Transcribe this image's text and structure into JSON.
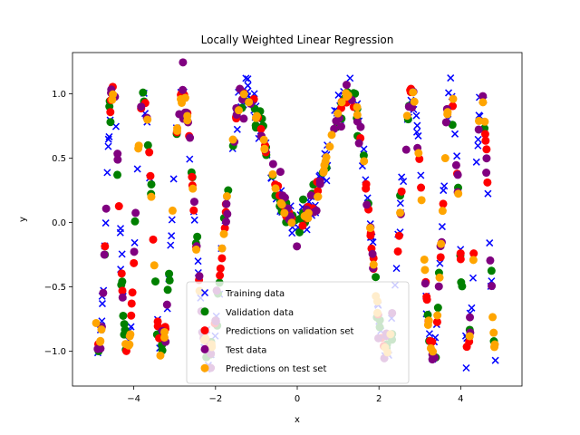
{
  "chart_data": {
    "type": "scatter",
    "title": "Locally Weighted Linear Regression",
    "xlabel": "x",
    "ylabel": "y",
    "xlim": [
      -5.5,
      5.5
    ],
    "ylim": [
      -1.27,
      1.32
    ],
    "xticks": [
      -4,
      -2,
      0,
      2,
      4
    ],
    "xtick_labels": [
      "−4",
      "−2",
      "0",
      "2",
      "4"
    ],
    "yticks": [
      -1.0,
      -0.5,
      0.0,
      0.5,
      1.0
    ],
    "ytick_labels": [
      "−1.0",
      "−0.5",
      "0.0",
      "0.5",
      "1.0"
    ],
    "legend_position": "lower-center",
    "grid": false,
    "underlying_function": "sin(x^2)",
    "series": [
      {
        "name": "Training data",
        "marker": "x",
        "color": "#0000ff",
        "samples": 220,
        "noise": 0.07,
        "seed": 11
      },
      {
        "name": "Validation data",
        "marker": "circle",
        "color": "#008000",
        "samples": 110,
        "noise": 0.09,
        "seed": 23
      },
      {
        "name": "Predictions on validation set",
        "marker": "circle",
        "color": "#ff0000",
        "samples": 110,
        "noise": 0.03,
        "seed": 37
      },
      {
        "name": "Test data",
        "marker": "circle",
        "color": "#800080",
        "samples": 110,
        "noise": 0.09,
        "seed": 41
      },
      {
        "name": "Predictions on test set",
        "marker": "circle",
        "color": "#ffa500",
        "samples": 110,
        "noise": 0.03,
        "seed": 53
      }
    ]
  }
}
